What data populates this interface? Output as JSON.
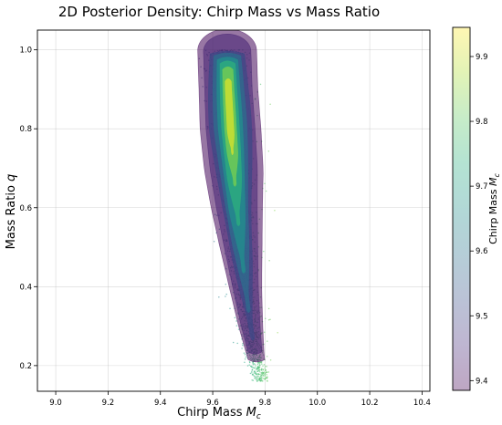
{
  "chart_data": {
    "type": "scatter",
    "title": "2D Posterior Density: Chirp Mass vs Mass Ratio",
    "xlabel": "Chirp Mass M_c",
    "xlabel_main": "Chirp Mass ",
    "xlabel_sym": "M",
    "xlabel_sub": "c",
    "ylabel_main": "Mass Ratio ",
    "ylabel_sym": "q",
    "xlim": [
      8.93,
      10.43
    ],
    "ylim": [
      0.135,
      1.05
    ],
    "x_ticks": [
      9.0,
      9.2,
      9.4,
      9.6,
      9.8,
      10.0,
      10.2,
      10.4
    ],
    "x_tick_labels": [
      "9.0",
      "9.2",
      "9.4",
      "9.6",
      "9.8",
      "10.0",
      "10.2",
      "10.4"
    ],
    "y_ticks": [
      0.2,
      0.4,
      0.6,
      0.8,
      1.0
    ],
    "y_tick_labels": [
      "0.2",
      "0.4",
      "0.6",
      "0.8",
      "1.0"
    ],
    "grid": true,
    "colorbar": {
      "label_main": "Chirp Mass ",
      "label_sym": "M",
      "label_sub": "c",
      "range": [
        9.385,
        9.945
      ],
      "ticks": [
        9.4,
        9.5,
        9.6,
        9.7,
        9.8,
        9.9
      ],
      "tick_labels": [
        "9.4",
        "9.5",
        "9.6",
        "9.7",
        "9.8",
        "9.9"
      ],
      "colormap": "viridis",
      "alpha": 0.35
    },
    "ridge": [
      {
        "q": 1.0,
        "mc": 9.655,
        "sd": 0.03
      },
      {
        "q": 0.9,
        "mc": 9.66,
        "sd": 0.03
      },
      {
        "q": 0.8,
        "mc": 9.668,
        "sd": 0.031
      },
      {
        "q": 0.7,
        "mc": 9.68,
        "sd": 0.03
      },
      {
        "q": 0.6,
        "mc": 9.692,
        "sd": 0.029
      },
      {
        "q": 0.5,
        "mc": 9.708,
        "sd": 0.027
      },
      {
        "q": 0.4,
        "mc": 9.725,
        "sd": 0.024
      },
      {
        "q": 0.3,
        "mc": 9.745,
        "sd": 0.021
      },
      {
        "q": 0.22,
        "mc": 9.765,
        "sd": 0.017
      },
      {
        "q": 0.17,
        "mc": 9.785,
        "sd": 0.015
      }
    ],
    "density_peak": {
      "mc": 9.665,
      "q": 0.83
    }
  }
}
